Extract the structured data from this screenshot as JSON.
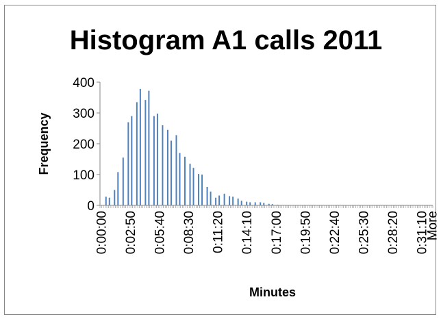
{
  "chart_data": {
    "type": "bar",
    "title": "Histogram A1 calls 2011",
    "x_label": "Minutes",
    "y_label": "Frequency",
    "color": "#4f81bd",
    "categories": [
      "0:00:00",
      null,
      null,
      null,
      null,
      null,
      null,
      null,
      null,
      null,
      null,
      null,
      null,
      null,
      null,
      null,
      null,
      "0:02:50",
      null,
      null,
      null,
      null,
      null,
      null,
      null,
      null,
      null,
      null,
      null,
      null,
      null,
      null,
      null,
      null,
      "0:05:40",
      null,
      null,
      null,
      null,
      null,
      null,
      null,
      null,
      null,
      null,
      null,
      null,
      null,
      null,
      null,
      null,
      "0:08:30",
      null,
      null,
      null,
      null,
      null,
      null,
      null,
      null,
      null,
      null,
      null,
      null,
      null,
      null,
      null,
      null,
      "0:11:20",
      null,
      null,
      null,
      null,
      null,
      null,
      null,
      null,
      null,
      null,
      null,
      null,
      null,
      null,
      null,
      null,
      "0:14:10",
      null,
      null,
      null,
      null,
      null,
      null,
      null,
      null,
      null,
      null,
      null,
      null,
      null,
      null,
      null,
      null,
      "0:17:00",
      null,
      null,
      null,
      null,
      null,
      null,
      null,
      null,
      null,
      null,
      null,
      null,
      null,
      null,
      null,
      null,
      "0:19:50",
      null,
      null,
      null,
      null,
      null,
      null,
      null,
      null,
      null,
      null,
      null,
      null,
      null,
      null,
      null,
      null,
      "0:22:40",
      null,
      null,
      null,
      null,
      null,
      null,
      null,
      null,
      null,
      null,
      null,
      null,
      null,
      null,
      null,
      null,
      "0:25:30",
      null,
      null,
      null,
      null,
      null,
      null,
      null,
      null,
      null,
      null,
      null,
      null,
      null,
      null,
      null,
      null,
      "0:28:20",
      null,
      null,
      null,
      null,
      null,
      null,
      null,
      null,
      null,
      null,
      null,
      null,
      null,
      null,
      null,
      null,
      "0:31:10",
      null,
      null,
      null,
      null,
      null,
      "More"
    ],
    "values": [
      0,
      0,
      0,
      28,
      0,
      25,
      0,
      0,
      50,
      0,
      108,
      0,
      0,
      155,
      0,
      0,
      270,
      0,
      290,
      0,
      0,
      335,
      0,
      378,
      0,
      0,
      342,
      0,
      372,
      0,
      0,
      290,
      0,
      298,
      0,
      0,
      260,
      0,
      0,
      245,
      0,
      210,
      0,
      0,
      228,
      0,
      170,
      0,
      0,
      158,
      0,
      0,
      135,
      0,
      122,
      0,
      0,
      102,
      0,
      100,
      0,
      0,
      60,
      0,
      45,
      0,
      0,
      25,
      0,
      32,
      0,
      0,
      38,
      0,
      0,
      30,
      0,
      28,
      0,
      0,
      22,
      0,
      15,
      0,
      0,
      12,
      0,
      10,
      0,
      0,
      10,
      0,
      0,
      10,
      0,
      8,
      0,
      0,
      5,
      0,
      4,
      0,
      0,
      2,
      0,
      1,
      0,
      0,
      0,
      0,
      0,
      0,
      0,
      0,
      0,
      0,
      0,
      0,
      0,
      0,
      0,
      0,
      0,
      0,
      0,
      0,
      0,
      0,
      0,
      0,
      0,
      0,
      0,
      0,
      0,
      0,
      0,
      0,
      0,
      0,
      0,
      0,
      0,
      0,
      0,
      0,
      0,
      0,
      0,
      0,
      0,
      0,
      0,
      0,
      0,
      0,
      0,
      0,
      0,
      0,
      0,
      0,
      0,
      0,
      0,
      0,
      0,
      0,
      0,
      0,
      0,
      0,
      0,
      0,
      0,
      0,
      0,
      0,
      0,
      0,
      0,
      0,
      0,
      0,
      0,
      0,
      0,
      0,
      0,
      0,
      0,
      0,
      0,
      0
    ],
    "ylim": [
      0,
      400
    ],
    "yticks": [
      0,
      100,
      200,
      300,
      400
    ]
  }
}
